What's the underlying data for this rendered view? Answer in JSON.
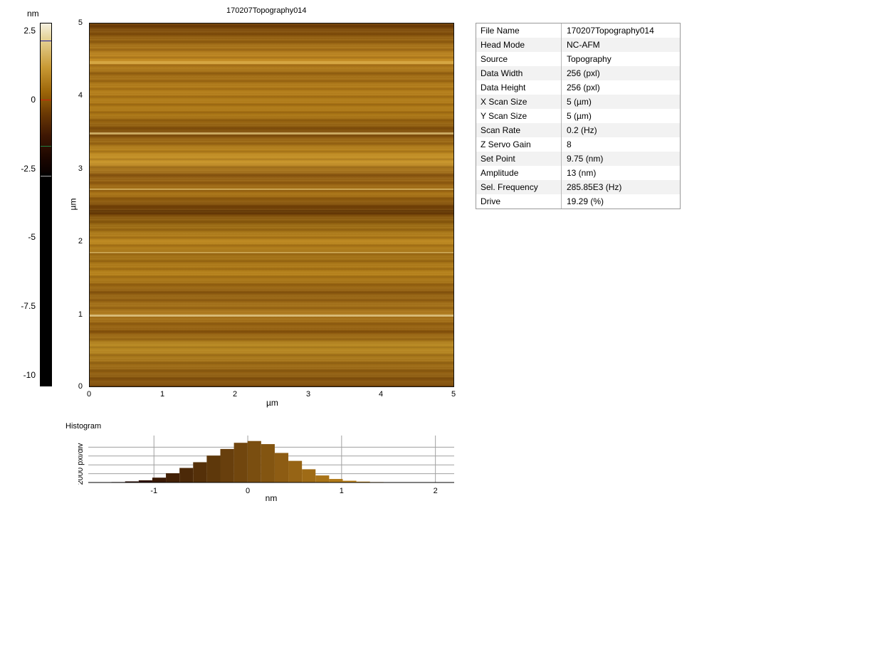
{
  "image_title": "170207Topography014",
  "colorbar": {
    "unit": "nm",
    "ticks": [
      "2.5",
      "0",
      "-2.5",
      "-5",
      "-7.5",
      "-10"
    ],
    "marker_colors": {
      "upper": "#1a1aa0",
      "middle": "#d02010",
      "lower": "#208040",
      "bottom": "#aaaaaa"
    }
  },
  "topography": {
    "x_label": "µm",
    "y_label": "µm",
    "x_ticks": [
      "0",
      "1",
      "2",
      "3",
      "4",
      "5"
    ],
    "y_ticks": [
      "5",
      "4",
      "3",
      "2",
      "1",
      "0"
    ]
  },
  "info": {
    "rows": [
      {
        "key": "File Name",
        "value": "170207Topography014"
      },
      {
        "key": "Head Mode",
        "value": "NC-AFM"
      },
      {
        "key": "Source",
        "value": "Topography"
      },
      {
        "key": "Data Width",
        "value": "256 (pxl)"
      },
      {
        "key": "Data Height",
        "value": "256 (pxl)"
      },
      {
        "key": "X Scan Size",
        "value": "5 (µm)"
      },
      {
        "key": "Y Scan Size",
        "value": "5 (µm)"
      },
      {
        "key": "Scan Rate",
        "value": "0.2 (Hz)"
      },
      {
        "key": "Z Servo Gain",
        "value": "8"
      },
      {
        "key": "Set Point",
        "value": "9.75 (nm)"
      },
      {
        "key": "Amplitude",
        "value": "13 (nm)"
      },
      {
        "key": "Sel. Frequency",
        "value": "285.85E3 (Hz)"
      },
      {
        "key": "Drive",
        "value": "19.29 (%)"
      }
    ]
  },
  "histogram": {
    "title": "Histogram",
    "ylabel": "2000 pxl/div",
    "xlabel": "nm",
    "x_ticks": [
      "-1",
      "0",
      "1",
      "2"
    ]
  },
  "chart_data": {
    "type": "bar",
    "title": "Histogram",
    "xlabel": "nm",
    "ylabel": "2000 pxl/div",
    "xlim": [
      -1.7,
      2.2
    ],
    "ylim": [
      0,
      10000
    ],
    "bin_width": 0.145,
    "bin_centers": [
      -1.38,
      -1.235,
      -1.09,
      -0.945,
      -0.8,
      -0.655,
      -0.51,
      -0.365,
      -0.22,
      -0.075,
      0.07,
      0.215,
      0.36,
      0.505,
      0.65,
      0.795,
      0.94,
      1.085,
      1.23,
      1.375
    ],
    "values": [
      100,
      250,
      500,
      1100,
      2100,
      3300,
      4600,
      6100,
      7600,
      9000,
      9400,
      8700,
      6700,
      4900,
      3000,
      1600,
      800,
      400,
      200,
      100
    ]
  }
}
